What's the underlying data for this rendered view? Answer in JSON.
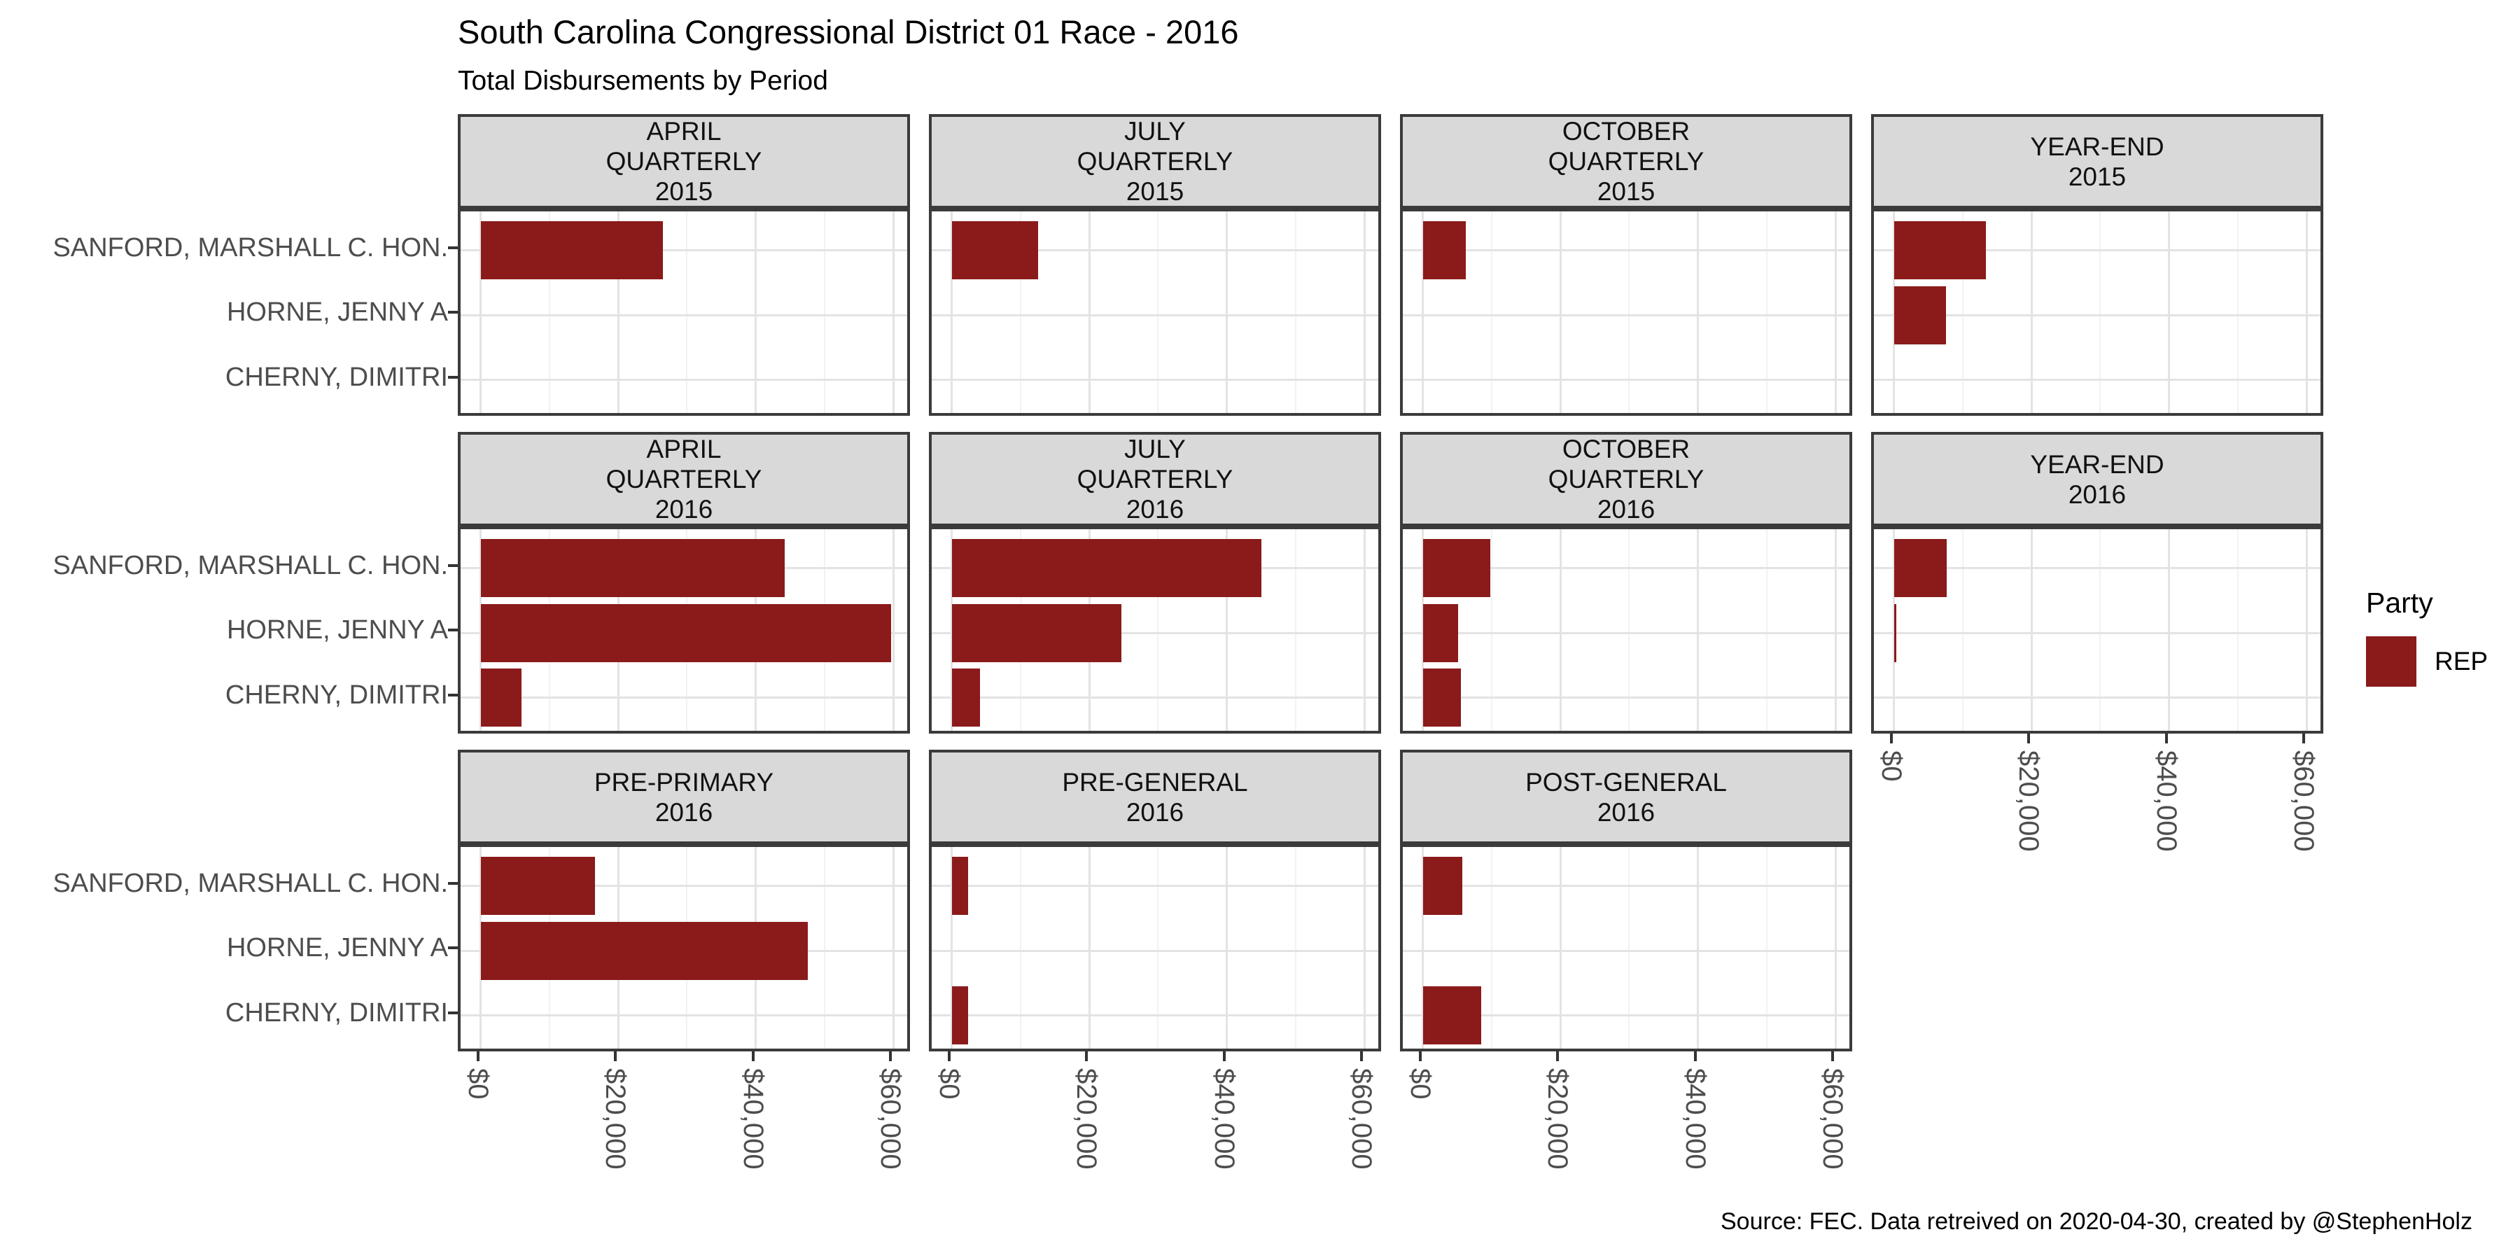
{
  "header": {
    "title": "South Carolina Congressional District 01 Race - 2016",
    "subtitle": "Total Disbursements by Period"
  },
  "caption": "Source: FEC. Data retreived on 2020-04-30, created by @StephenHolz",
  "legend": {
    "title": "Party",
    "entries": [
      {
        "label": "REP",
        "color": "#8B1A1A"
      }
    ]
  },
  "colors": {
    "bar": "#8B1A1A",
    "strip_background": "#D9D9D9",
    "panel_border": "#3B3B3B",
    "grid_major": "#E3E3E3",
    "grid_minor": "#F2F2F2",
    "axis_text": "#4D4D4D"
  },
  "chart_data": {
    "type": "bar",
    "orientation": "horizontal",
    "title": "South Carolina Congressional District 01 Race - 2016",
    "subtitle": "Total Disbursements by Period",
    "categories": [
      "SANFORD, MARSHALL C. HON.",
      "HORNE, JENNY A",
      "CHERNY, DIMITRI"
    ],
    "series_name": "REP",
    "x_axis": {
      "range": [
        -2900,
        62800
      ],
      "tick_values": [
        0,
        20000,
        40000,
        60000
      ],
      "tick_labels": [
        "$0",
        "$20,000",
        "$40,000",
        "$60,000"
      ],
      "minor_values": [
        10000,
        30000,
        50000
      ]
    },
    "grid": "on",
    "legend_position": "right",
    "facets": [
      {
        "row": 0,
        "col": 0,
        "lines": [
          "APRIL",
          "QUARTERLY",
          "2015"
        ],
        "values": [
          26500,
          0,
          0
        ]
      },
      {
        "row": 0,
        "col": 1,
        "lines": [
          "JULY",
          "QUARTERLY",
          "2015"
        ],
        "values": [
          12600,
          0,
          0
        ]
      },
      {
        "row": 0,
        "col": 2,
        "lines": [
          "OCTOBER",
          "QUARTERLY",
          "2015"
        ],
        "values": [
          6300,
          0,
          0
        ]
      },
      {
        "row": 0,
        "col": 3,
        "lines": [
          "YEAR-END",
          "2015"
        ],
        "values": [
          13400,
          7600,
          0
        ]
      },
      {
        "row": 1,
        "col": 0,
        "lines": [
          "APRIL",
          "QUARTERLY",
          "2016"
        ],
        "values": [
          44200,
          59600,
          5900
        ]
      },
      {
        "row": 1,
        "col": 1,
        "lines": [
          "JULY",
          "QUARTERLY",
          "2016"
        ],
        "values": [
          45000,
          24700,
          4100
        ]
      },
      {
        "row": 1,
        "col": 2,
        "lines": [
          "OCTOBER",
          "QUARTERLY",
          "2016"
        ],
        "values": [
          9800,
          5100,
          5500
        ]
      },
      {
        "row": 1,
        "col": 3,
        "lines": [
          "YEAR-END",
          "2016"
        ],
        "values": [
          7700,
          400,
          0
        ]
      },
      {
        "row": 2,
        "col": 0,
        "lines": [
          "PRE-PRIMARY",
          "2016"
        ],
        "values": [
          16600,
          47500,
          0
        ]
      },
      {
        "row": 2,
        "col": 1,
        "lines": [
          "PRE-GENERAL",
          "2016"
        ],
        "values": [
          2400,
          0,
          2400
        ]
      },
      {
        "row": 2,
        "col": 2,
        "lines": [
          "POST-GENERAL",
          "2016"
        ],
        "values": [
          5700,
          0,
          8500
        ]
      }
    ]
  }
}
